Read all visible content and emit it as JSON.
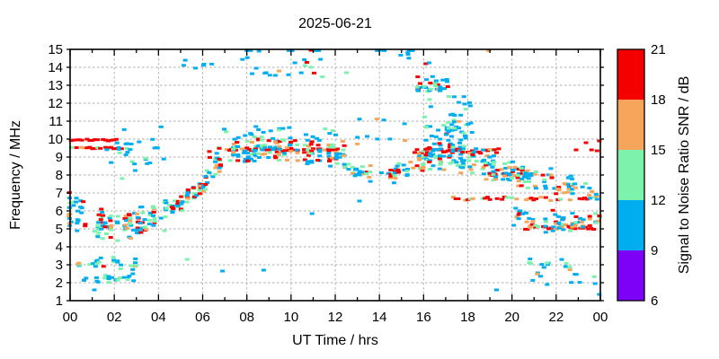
{
  "chart_data": {
    "type": "scatter",
    "title": "2025-06-21",
    "xlabel": "UT Time / hrs",
    "ylabel": "Frequency / MHz",
    "x_range": [
      0,
      24
    ],
    "y_range": [
      1,
      15
    ],
    "x_tick_labels": [
      "00",
      "02",
      "04",
      "06",
      "08",
      "10",
      "12",
      "14",
      "16",
      "18",
      "20",
      "22",
      "00"
    ],
    "x_major_step_hrs": 2,
    "x_minor_step_hrs": 1,
    "y_tick_labels": [
      "1",
      "2",
      "3",
      "4",
      "5",
      "6",
      "7",
      "8",
      "9",
      "10",
      "11",
      "12",
      "13",
      "14",
      "15"
    ],
    "grid": true,
    "grid_color": "#ABABAB",
    "axis_color": "#000000",
    "colorbar": {
      "label": "Signal to Noise Ratio SNR / dB",
      "tick_labels": [
        "6",
        "9",
        "12",
        "15",
        "18",
        "21"
      ],
      "min": 6,
      "max": 21,
      "segments": [
        {
          "from": 6,
          "to": 9,
          "color": "#7D00F7",
          "name": "violet"
        },
        {
          "from": 9,
          "to": 12,
          "color": "#00AEEF",
          "name": "blue"
        },
        {
          "from": 12,
          "to": 15,
          "color": "#7CF2AC",
          "name": "green"
        },
        {
          "from": 15,
          "to": 18,
          "color": "#F7A55A",
          "name": "orange"
        },
        {
          "from": 18,
          "to": 21,
          "color": "#F40000",
          "name": "red"
        }
      ]
    },
    "palette": {
      "red": "#F40000",
      "orange": "#F7A55A",
      "green": "#7CF2AC",
      "blue": "#00AEEF",
      "purple": "#7D00F7"
    },
    "point_w": 5,
    "point_h": 3,
    "seed": 1337,
    "rows": [
      {
        "f": 9.95,
        "t0": 0.05,
        "t1": 2.1,
        "step": 0.12,
        "p": 0.74,
        "jitter": 0.05,
        "colors": {
          "red": 1
        }
      },
      {
        "f": 9.5,
        "t0": 0.05,
        "t1": 2.65,
        "step": 0.12,
        "p": 0.8,
        "jitter": 0.05,
        "colors": {
          "red": 0.72,
          "green": 0.13,
          "orange": 0.15
        }
      },
      {
        "f": 9.42,
        "t0": 7.3,
        "t1": 12.3,
        "step": 0.1,
        "p": 0.62,
        "jitter": 0.1,
        "colors": {
          "red": 0.78,
          "orange": 0.14,
          "green": 0.08
        }
      },
      {
        "f": 9.35,
        "t0": 15.6,
        "t1": 19.6,
        "step": 0.1,
        "p": 0.72,
        "jitter": 0.12,
        "colors": {
          "red": 0.75,
          "orange": 0.18,
          "green": 0.07
        }
      },
      {
        "f": 6.68,
        "t0": 17.35,
        "t1": 23.95,
        "step": 0.11,
        "p": 0.68,
        "jitter": 0.1,
        "colors": {
          "red": 0.6,
          "orange": 0.24,
          "green": 0.16
        }
      },
      {
        "f": 5.05,
        "t0": 20.7,
        "t1": 23.9,
        "step": 0.12,
        "p": 0.62,
        "jitter": 0.08,
        "colors": {
          "red": 0.7,
          "orange": 0.2,
          "green": 0.1
        }
      },
      {
        "f": 8.02,
        "t0": 19.0,
        "t1": 21.6,
        "step": 0.12,
        "p": 0.55,
        "jitter": 0.1,
        "colors": {
          "red": 0.6,
          "orange": 0.25,
          "blue": 0.15
        }
      }
    ],
    "bands": [
      {
        "t0": 0,
        "t1": 4.35,
        "step": 0.18,
        "p": 0.9,
        "nmax": 10,
        "spread": 0.95,
        "keys": [
          [
            0,
            5.6
          ],
          [
            1,
            5.2
          ],
          [
            2.5,
            5.2
          ],
          [
            4.35,
            5.7
          ]
        ],
        "colors": {
          "blue": 0.46,
          "green": 0.2,
          "orange": 0.13,
          "red": 0.21
        }
      },
      {
        "t0": 0,
        "t1": 0.7,
        "step": 0.15,
        "p": 0.85,
        "nmax": 3,
        "spread": 0.5,
        "keys": [
          [
            0,
            6.7
          ],
          [
            0.7,
            6.4
          ]
        ],
        "colors": {
          "blue": 0.5,
          "green": 0.2,
          "red": 0.2,
          "orange": 0.1
        }
      },
      {
        "t0": 0.4,
        "t1": 3.1,
        "step": 0.16,
        "p": 0.75,
        "nmax": 4,
        "spread": 0.45,
        "keys": [
          [
            0.4,
            3.15
          ],
          [
            3.1,
            3.1
          ]
        ],
        "colors": {
          "blue": 0.5,
          "green": 0.22,
          "orange": 0.18,
          "red": 0.1
        }
      },
      {
        "t0": 0.5,
        "t1": 3.0,
        "step": 0.18,
        "p": 0.65,
        "nmax": 3,
        "spread": 0.3,
        "keys": [
          [
            0.5,
            2.2
          ],
          [
            3,
            2.25
          ]
        ],
        "colors": {
          "blue": 0.62,
          "green": 0.3,
          "orange": 0.08
        }
      },
      {
        "t0": 4.35,
        "t1": 6.3,
        "step": 0.14,
        "p": 0.92,
        "nmax": 7,
        "spread": 0.6,
        "keys": [
          [
            4.35,
            5.9
          ],
          [
            5.1,
            6.5
          ],
          [
            5.6,
            7.0
          ],
          [
            6.3,
            7.9
          ]
        ],
        "colors": {
          "blue": 0.36,
          "green": 0.18,
          "orange": 0.14,
          "red": 0.32
        }
      },
      {
        "t0": 6.3,
        "t1": 12.45,
        "step": 0.16,
        "p": 0.9,
        "nmax": 9,
        "spread": 0.85,
        "keys": [
          [
            6.3,
            8.5
          ],
          [
            7.5,
            9.3
          ],
          [
            9.5,
            9.5
          ],
          [
            12.45,
            9.1
          ]
        ],
        "colors": {
          "blue": 0.45,
          "green": 0.2,
          "orange": 0.16,
          "red": 0.19
        }
      },
      {
        "t0": 7.0,
        "t1": 12.3,
        "step": 0.3,
        "p": 0.55,
        "nmax": 2,
        "spread": 0.4,
        "keys": [
          [
            7,
            10.45
          ],
          [
            12.3,
            10.2
          ]
        ],
        "colors": {
          "blue": 0.8,
          "green": 0.15,
          "orange": 0.05
        }
      },
      {
        "t0": 12.45,
        "t1": 14.7,
        "step": 0.16,
        "p": 0.75,
        "nmax": 4,
        "spread": 0.5,
        "keys": [
          [
            12.45,
            8.2
          ],
          [
            14.7,
            8.0
          ]
        ],
        "colors": {
          "blue": 0.52,
          "green": 0.2,
          "orange": 0.18,
          "red": 0.1
        }
      },
      {
        "t0": 14.7,
        "t1": 16.0,
        "step": 0.14,
        "p": 0.88,
        "nmax": 6,
        "spread": 0.7,
        "keys": [
          [
            14.7,
            8.1
          ],
          [
            16,
            8.7
          ]
        ],
        "colors": {
          "blue": 0.45,
          "green": 0.2,
          "orange": 0.15,
          "red": 0.2
        }
      },
      {
        "t0": 16,
        "t1": 19.4,
        "step": 0.15,
        "p": 0.92,
        "nmax": 10,
        "spread": 1.0,
        "keys": [
          [
            16,
            8.9
          ],
          [
            17.2,
            9.2
          ],
          [
            19.4,
            8.5
          ]
        ],
        "colors": {
          "blue": 0.44,
          "green": 0.19,
          "orange": 0.17,
          "red": 0.2
        }
      },
      {
        "t0": 16.9,
        "t1": 17.7,
        "step": 0.12,
        "p": 0.85,
        "nmax": 4,
        "spread": 0.75,
        "keys": [
          [
            16.9,
            10.3
          ],
          [
            17.3,
            10.8
          ],
          [
            17.7,
            10.2
          ]
        ],
        "colors": {
          "blue": 0.6,
          "green": 0.25,
          "red": 0.1,
          "orange": 0.05
        }
      },
      {
        "t0": 19.4,
        "t1": 22.7,
        "step": 0.15,
        "p": 0.82,
        "nmax": 6,
        "spread": 0.75,
        "keys": [
          [
            19.4,
            8.2
          ],
          [
            21,
            7.8
          ],
          [
            22.7,
            7.5
          ]
        ],
        "colors": {
          "blue": 0.46,
          "green": 0.2,
          "orange": 0.18,
          "red": 0.16
        }
      },
      {
        "t0": 19.9,
        "t1": 24,
        "step": 0.15,
        "p": 0.78,
        "nmax": 6,
        "spread": 0.75,
        "keys": [
          [
            19.9,
            5.6
          ],
          [
            22,
            5.4
          ],
          [
            24,
            5.3
          ]
        ],
        "colors": {
          "blue": 0.42,
          "green": 0.2,
          "orange": 0.22,
          "red": 0.16
        }
      },
      {
        "t0": 20.6,
        "t1": 23.95,
        "step": 0.2,
        "p": 0.6,
        "nmax": 3,
        "spread": 0.55,
        "keys": [
          [
            20.6,
            3.0
          ],
          [
            23.95,
            3.0
          ]
        ],
        "colors": {
          "blue": 0.5,
          "green": 0.25,
          "orange": 0.25
        }
      },
      {
        "t0": 22.7,
        "t1": 24,
        "step": 0.16,
        "p": 0.7,
        "nmax": 3,
        "spread": 0.45,
        "keys": [
          [
            22.7,
            7.2
          ],
          [
            24,
            7.0
          ]
        ],
        "colors": {
          "blue": 0.6,
          "green": 0.2,
          "orange": 0.2
        }
      }
    ],
    "boxes": [
      {
        "t0": 1.5,
        "t1": 4.4,
        "f0": 7.6,
        "f1": 10.8,
        "n": 16,
        "colors": {
          "blue": 0.85,
          "green": 0.15
        }
      },
      {
        "t0": 2.1,
        "t1": 2.8,
        "f0": 8.9,
        "f1": 9.8,
        "n": 7,
        "colors": {
          "blue": 1
        }
      },
      {
        "t0": 3.4,
        "t1": 4.25,
        "f0": 8.5,
        "f1": 8.95,
        "n": 5,
        "colors": {
          "blue": 0.7,
          "green": 0.3
        }
      },
      {
        "t0": 7.6,
        "t1": 12.6,
        "f0": 13.4,
        "f1": 14.7,
        "n": 20,
        "colors": {
          "blue": 0.8,
          "green": 0.1,
          "red": 0.05,
          "orange": 0.05
        }
      },
      {
        "t0": 5.1,
        "t1": 6.8,
        "f0": 13.7,
        "f1": 14.6,
        "n": 6,
        "colors": {
          "blue": 1
        }
      },
      {
        "t0": 15.7,
        "t1": 17.15,
        "f0": 12.6,
        "f1": 13.5,
        "n": 32,
        "colors": {
          "blue": 0.5,
          "green": 0.25,
          "red": 0.15,
          "orange": 0.1
        }
      },
      {
        "t0": 15.9,
        "t1": 18.3,
        "f0": 11.2,
        "f1": 12.4,
        "n": 14,
        "colors": {
          "blue": 0.85,
          "green": 0.15
        }
      },
      {
        "t0": 12.9,
        "t1": 15.2,
        "f0": 9.4,
        "f1": 11.2,
        "n": 10,
        "colors": {
          "blue": 0.8,
          "orange": 0.2
        }
      },
      {
        "t0": 20.3,
        "t1": 23.9,
        "f0": 1.9,
        "f1": 2.5,
        "n": 9,
        "colors": {
          "blue": 0.8,
          "green": 0.2
        }
      },
      {
        "t0": 16.1,
        "t1": 18.4,
        "f0": 9.9,
        "f1": 10.9,
        "n": 20,
        "colors": {
          "blue": 0.7,
          "green": 0.2,
          "orange": 0.1
        }
      },
      {
        "t0": 14.8,
        "t1": 15.5,
        "f0": 14.5,
        "f1": 14.95,
        "n": 4,
        "colors": {
          "blue": 1
        }
      }
    ],
    "points": [
      [
        8.0,
        14.93,
        "blue"
      ],
      [
        8.17,
        14.93,
        "blue"
      ],
      [
        8.55,
        14.9,
        "blue"
      ],
      [
        9.9,
        14.93,
        "blue"
      ],
      [
        10.05,
        14.93,
        "blue"
      ],
      [
        10.9,
        14.95,
        "red"
      ],
      [
        11.1,
        14.93,
        "blue"
      ],
      [
        11.25,
        14.93,
        "blue"
      ],
      [
        13.9,
        14.93,
        "blue"
      ],
      [
        14.07,
        14.95,
        "blue"
      ],
      [
        14.22,
        14.93,
        "blue"
      ],
      [
        15.35,
        14.93,
        "blue"
      ],
      [
        15.5,
        14.93,
        "blue"
      ],
      [
        18.95,
        14.93,
        "orange"
      ],
      [
        16.1,
        14.2,
        "red"
      ],
      [
        16.25,
        14.25,
        "blue"
      ],
      [
        22.9,
        9.4,
        "red"
      ],
      [
        23.35,
        9.8,
        "red"
      ],
      [
        23.6,
        9.4,
        "red"
      ],
      [
        23.85,
        9.35,
        "red"
      ],
      [
        23.95,
        9.9,
        "red"
      ],
      [
        6.9,
        2.65,
        "blue"
      ],
      [
        8.76,
        2.7,
        "blue"
      ],
      [
        5.3,
        3.3,
        "green"
      ],
      [
        10.95,
        5.85,
        "blue"
      ],
      [
        13.1,
        6.55,
        "blue"
      ],
      [
        19.3,
        1.6,
        "blue"
      ],
      [
        23.95,
        1.35,
        "blue"
      ],
      [
        1.1,
        1.6,
        "blue"
      ]
    ]
  }
}
